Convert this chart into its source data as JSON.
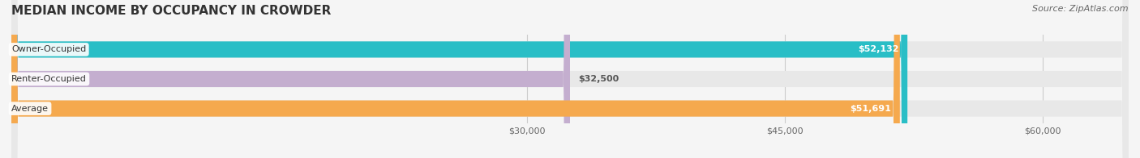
{
  "title": "MEDIAN INCOME BY OCCUPANCY IN CROWDER",
  "source": "Source: ZipAtlas.com",
  "categories": [
    "Owner-Occupied",
    "Renter-Occupied",
    "Average"
  ],
  "values": [
    52132,
    32500,
    51691
  ],
  "bar_colors": [
    "#29BEC6",
    "#C4AECF",
    "#F5A94E"
  ],
  "value_labels": [
    "$52,132",
    "$32,500",
    "$51,691"
  ],
  "xlim": [
    0,
    65000
  ],
  "xticks": [
    30000,
    45000,
    60000
  ],
  "xtick_labels": [
    "$30,000",
    "$45,000",
    "$60,000"
  ],
  "background_color": "#f5f5f5",
  "bar_height": 0.55,
  "figsize": [
    14.06,
    1.96
  ],
  "dpi": 100
}
